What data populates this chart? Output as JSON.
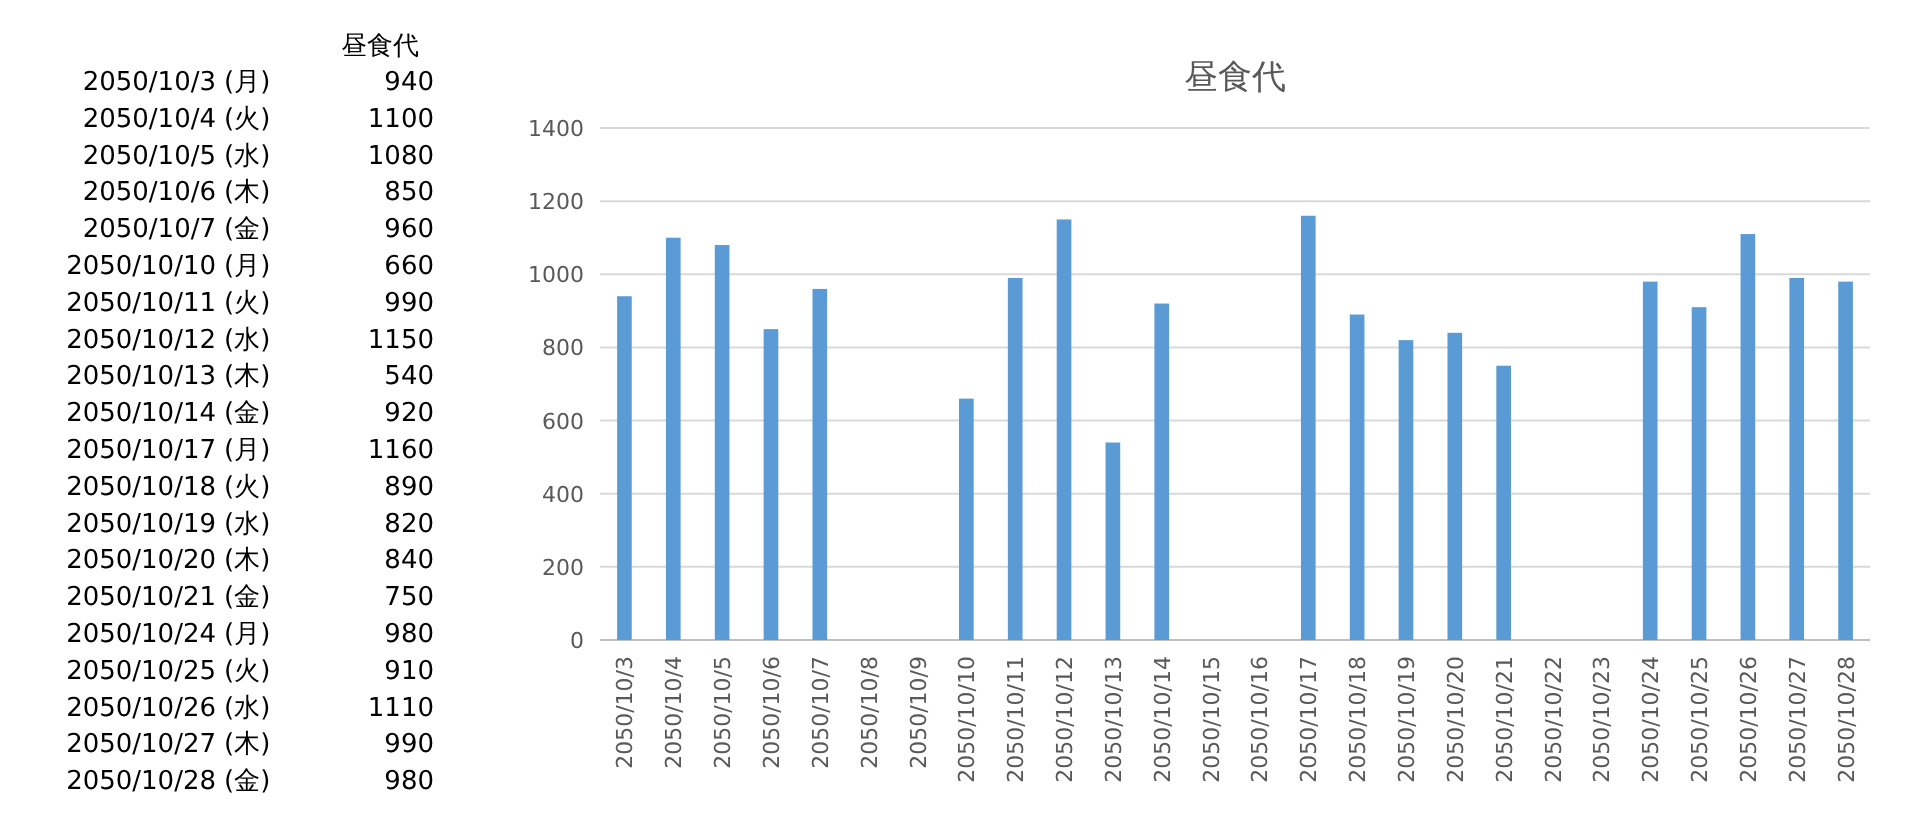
{
  "chart_data": [
    {
      "type": "other",
      "title": "昼食代",
      "categories": [
        "2050/10/3",
        "2050/10/4",
        "2050/10/5",
        "2050/10/6",
        "2050/10/7",
        "2050/10/10",
        "2050/10/11",
        "2050/10/12",
        "2050/10/13",
        "2050/10/14",
        "2050/10/17",
        "2050/10/18",
        "2050/10/19",
        "2050/10/20",
        "2050/10/21",
        "2050/10/24",
        "2050/10/25",
        "2050/10/26",
        "2050/10/27",
        "2050/10/28"
      ],
      "values": [
        940,
        1100,
        1080,
        850,
        960,
        660,
        990,
        1150,
        540,
        920,
        1160,
        890,
        820,
        840,
        750,
        980,
        910,
        1110,
        990,
        980
      ],
      "data_labels": true,
      "annotations": [
        "(月)",
        "(火)",
        "(水)",
        "(木)",
        "(金)",
        "(月)",
        "(火)",
        "(水)",
        "(木)",
        "(金)",
        "(月)",
        "(火)",
        "(水)",
        "(木)",
        "(金)",
        "(月)",
        "(火)",
        "(水)",
        "(木)",
        "(金)"
      ]
    },
    {
      "type": "bar",
      "title": "昼食代",
      "categories": [
        "2050/10/3",
        "2050/10/4",
        "2050/10/5",
        "2050/10/6",
        "2050/10/7",
        "2050/10/8",
        "2050/10/9",
        "2050/10/10",
        "2050/10/11",
        "2050/10/12",
        "2050/10/13",
        "2050/10/14",
        "2050/10/15",
        "2050/10/16",
        "2050/10/17",
        "2050/10/18",
        "2050/10/19",
        "2050/10/20",
        "2050/10/21",
        "2050/10/22",
        "2050/10/23",
        "2050/10/24",
        "2050/10/25",
        "2050/10/26",
        "2050/10/27",
        "2050/10/28"
      ],
      "color": "#5b9bd5",
      "values": [
        940,
        1100,
        1080,
        850,
        960,
        null,
        null,
        660,
        990,
        1150,
        540,
        920,
        null,
        null,
        1160,
        890,
        820,
        840,
        750,
        null,
        null,
        980,
        910,
        1110,
        990,
        980
      ],
      "ylim": [
        0,
        1400
      ],
      "yticks": [
        0,
        200,
        400,
        600,
        800,
        1000,
        1200,
        1400
      ],
      "grid": "y",
      "legend": false
    }
  ]
}
